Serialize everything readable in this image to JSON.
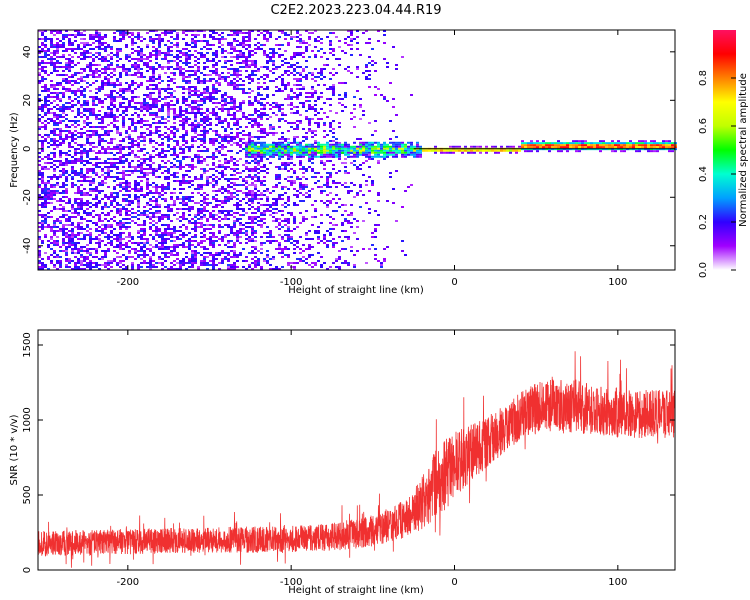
{
  "title": "C2E2.2023.223.04.44.R19",
  "chart_data": [
    {
      "type": "heatmap",
      "panel": "top",
      "xlabel": "Height of straight line (km)",
      "ylabel": "Frequency (Hz)",
      "xlim": [
        -255,
        135
      ],
      "ylim": [
        -50,
        49
      ],
      "x_ticks": [
        -200,
        -100,
        0,
        100
      ],
      "y_ticks": [
        -40,
        -20,
        0,
        20,
        40
      ],
      "colorbar": {
        "label": "Normalized spectral amplitude",
        "range": [
          0,
          1
        ],
        "ticks": [
          0.0,
          0.2,
          0.4,
          0.6,
          0.8
        ],
        "colormap": [
          "#ffffff",
          "#a000ff",
          "#3000ff",
          "#00a0ff",
          "#00ffd0",
          "#00ff00",
          "#c0ff00",
          "#ffff00",
          "#ff8000",
          "#ff0000",
          "#ff1060"
        ]
      },
      "features": [
        {
          "name": "broadband noise",
          "x_range": [
            -255,
            -25
          ],
          "freq_range": [
            -50,
            49
          ],
          "amplitude": 0.15
        },
        {
          "name": "narrow carrier line",
          "x_range": [
            -130,
            135
          ],
          "freq_center": 0,
          "amplitude": 0.9
        }
      ]
    },
    {
      "type": "line",
      "panel": "bottom",
      "xlabel": "Height of straight line (km)",
      "ylabel": "SNR (10 * v/v)",
      "xlim": [
        -255,
        135
      ],
      "ylim": [
        0,
        1600
      ],
      "x_ticks": [
        -200,
        -100,
        0,
        100
      ],
      "y_ticks": [
        0,
        500,
        1000,
        1500
      ],
      "series": [
        {
          "name": "SNR",
          "color": "#f03030",
          "x": [
            -255,
            -200,
            -150,
            -100,
            -75,
            -50,
            -40,
            -30,
            -25,
            -20,
            -15,
            -10,
            -5,
            0,
            10,
            20,
            30,
            40,
            50,
            60,
            70,
            80,
            90,
            100,
            110,
            120,
            135
          ],
          "mean": [
            175,
            190,
            200,
            205,
            220,
            260,
            300,
            340,
            380,
            450,
            520,
            580,
            640,
            700,
            780,
            850,
            940,
            1020,
            1080,
            1090,
            1090,
            1080,
            1060,
            1050,
            1040,
            1040,
            1040
          ],
          "spread": [
            85,
            85,
            85,
            90,
            95,
            105,
            115,
            130,
            150,
            180,
            220,
            240,
            250,
            220,
            190,
            170,
            160,
            160,
            170,
            180,
            180,
            175,
            170,
            165,
            160,
            160,
            160
          ]
        }
      ]
    }
  ]
}
